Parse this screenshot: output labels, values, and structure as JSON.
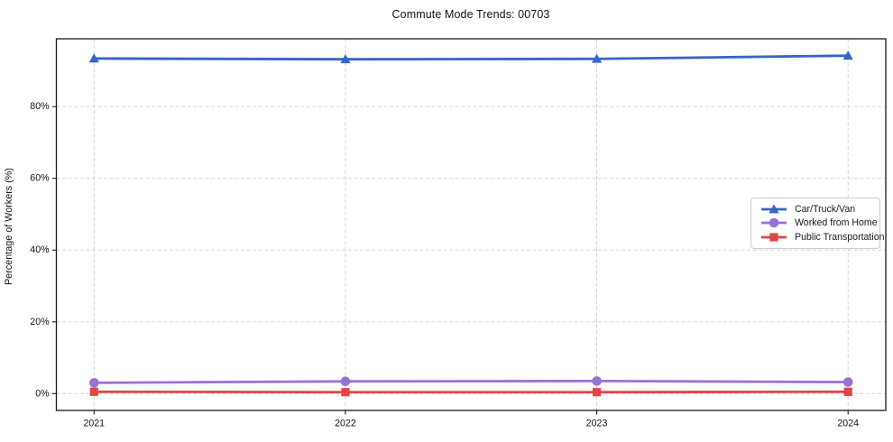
{
  "chart_data": {
    "type": "line",
    "title": "Commute Mode Trends: 00703",
    "xlabel": "",
    "ylabel": "Percentage of Workers (%)",
    "x": [
      2021,
      2022,
      2023,
      2024
    ],
    "xtick_labels": [
      "2021",
      "2022",
      "2023",
      "2024"
    ],
    "xlim": [
      2020.85,
      2024.15
    ],
    "ylim": [
      -4.7,
      98.9
    ],
    "yticks": [
      0,
      20,
      40,
      60,
      80
    ],
    "ytick_labels": [
      "0%",
      "20%",
      "40%",
      "60%",
      "80%"
    ],
    "grid": true,
    "grid_style": "dashed",
    "legend_position": "center-right",
    "series": [
      {
        "name": "Car/Truck/Van",
        "color": "#3565c6",
        "marker": "triangle",
        "values": [
          93.4,
          93.2,
          93.3,
          94.2
        ]
      },
      {
        "name": "Worked from Home",
        "color": "#9873d4",
        "marker": "circle",
        "values": [
          3.0,
          3.4,
          3.5,
          3.2
        ]
      },
      {
        "name": "Public Transportation",
        "color": "#e04646",
        "marker": "square",
        "values": [
          0.5,
          0.4,
          0.4,
          0.5
        ]
      }
    ],
    "colors": {
      "grid": "#cfcfcf",
      "spine": "#1a1a1a",
      "tick_text": "#111111",
      "background": "#ffffff",
      "legend_border": "#cccccc"
    }
  }
}
